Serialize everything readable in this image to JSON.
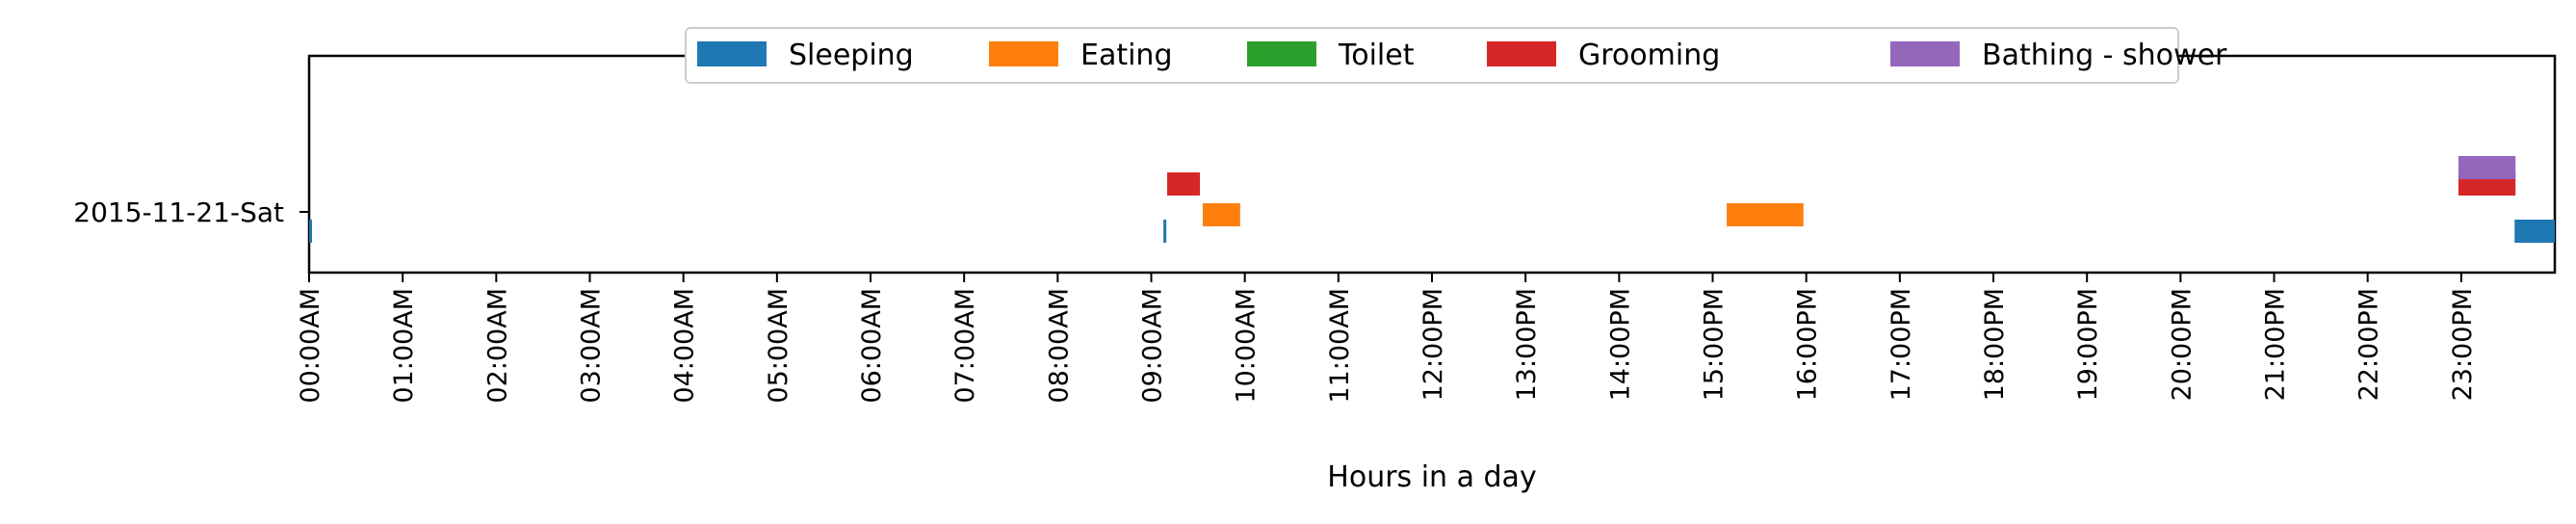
{
  "chart_data": {
    "type": "timeline",
    "title": "",
    "xlabel": "Hours in a day",
    "ylabel": "",
    "xlim": [
      0,
      24
    ],
    "x_ticks": [
      "00:00AM",
      "01:00AM",
      "02:00AM",
      "03:00AM",
      "04:00AM",
      "05:00AM",
      "06:00AM",
      "07:00AM",
      "08:00AM",
      "09:00AM",
      "10:00AM",
      "11:00AM",
      "12:00PM",
      "13:00PM",
      "14:00PM",
      "15:00PM",
      "16:00PM",
      "17:00PM",
      "18:00PM",
      "19:00PM",
      "20:00PM",
      "21:00PM",
      "22:00PM",
      "23:00PM"
    ],
    "y_categories": [
      "2015-11-21-Sat"
    ],
    "legend_position": "top-center",
    "grid": false,
    "series": [
      {
        "name": "Sleeping",
        "color": "#1f77b4",
        "lane": 0,
        "intervals": [
          [
            0.0,
            0.03
          ],
          [
            9.13,
            9.15
          ],
          [
            23.57,
            24.0
          ]
        ]
      },
      {
        "name": "Eating",
        "color": "#ff7f0e",
        "lane": 1,
        "intervals": [
          [
            9.55,
            9.95
          ],
          [
            15.15,
            15.97
          ]
        ]
      },
      {
        "name": "Toilet",
        "color": "#2ca02c",
        "lane": 2,
        "intervals": []
      },
      {
        "name": "Grooming",
        "color": "#d62728",
        "lane": 3,
        "intervals": [
          [
            9.17,
            9.52
          ],
          [
            22.97,
            23.58
          ]
        ]
      },
      {
        "name": "Bathing - shower",
        "color": "#9467bd",
        "lane": 4,
        "intervals": [
          [
            22.97,
            23.58
          ]
        ]
      }
    ]
  }
}
